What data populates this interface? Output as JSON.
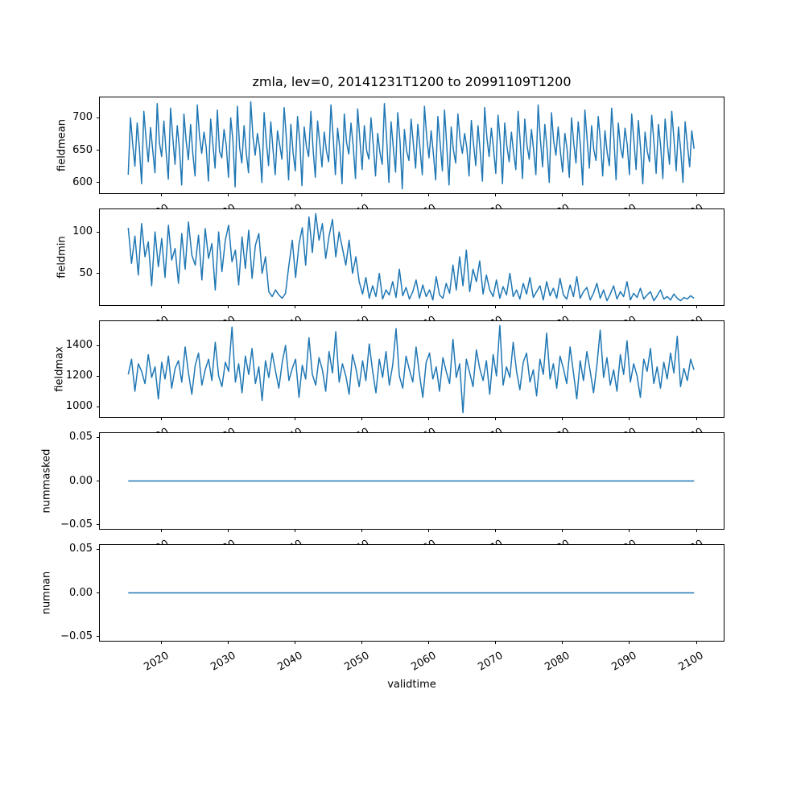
{
  "chart_data": {
    "type": "line",
    "title": "zmla, lev=0, 20141231T1200 to 20991109T1200",
    "xlabel": "validtime",
    "line_color": "#1f77b4",
    "x_axis": {
      "xlim": [
        2010.75,
        2104.1
      ],
      "ticks": [
        2020,
        2030,
        2040,
        2050,
        2060,
        2070,
        2080,
        2090,
        2100
      ],
      "tick_labels": [
        "2020",
        "2030",
        "2040",
        "2050",
        "2060",
        "2070",
        "2080",
        "2090",
        "2100"
      ]
    },
    "subplots": [
      {
        "ylabel": "fieldmean",
        "ylim": [
          583.25,
          731.75
        ],
        "yticks": [
          {
            "v": 600,
            "label": "600"
          },
          {
            "v": 650,
            "label": "650"
          },
          {
            "v": 700,
            "label": "700"
          }
        ],
        "x_start": 2015.0,
        "x_step": 0.33333,
        "values": [
          612,
          700,
          660,
          625,
          692,
          655,
          598,
          710,
          668,
          632,
          685,
          650,
          615,
          722,
          662,
          640,
          695,
          648,
          605,
          715,
          670,
          628,
          688,
          652,
          596,
          706,
          665,
          635,
          690,
          645,
          610,
          720,
          672,
          645,
          678,
          655,
          602,
          698,
          660,
          622,
          712,
          648,
          638,
          682,
          658,
          608,
          700,
          666,
          593,
          718,
          654,
          630,
          688,
          645,
          615,
          725,
          670,
          642,
          676,
          652,
          600,
          708,
          662,
          626,
          694,
          650,
          612,
          680,
          658,
          636,
          716,
          668,
          604,
          690,
          646,
          618,
          702,
          664,
          595,
          686,
          655,
          640,
          710,
          650,
          608,
          695,
          660,
          624,
          678,
          648,
          632,
          720,
          670,
          612,
          684,
          652,
          598,
          706,
          662,
          644,
          692,
          656,
          606,
          714,
          666,
          620,
          688,
          650,
          636,
          700,
          658,
          610,
          676,
          646,
          628,
          722,
          668,
          600,
          694,
          654,
          616,
          708,
          664,
          590,
          682,
          648,
          634,
          698,
          660,
          622,
          690,
          652,
          612,
          718,
          670,
          638,
          680,
          644,
          604,
          702,
          662,
          618,
          712,
          656,
          596,
          686,
          650,
          630,
          706,
          666,
          645,
          676,
          654,
          610,
          696,
          660,
          626,
          688,
          648,
          602,
          716,
          670,
          640,
          684,
          652,
          614,
          704,
          664,
          598,
          692,
          656,
          632,
          678,
          646,
          620,
          710,
          662,
          606,
          698,
          658,
          636,
          682,
          650,
          612,
          720,
          668,
          624,
          690,
          654,
          600,
          708,
          664,
          642,
          686,
          648,
          616,
          676,
          652,
          608,
          700,
          660,
          630,
          694,
          656,
          596,
          712,
          666,
          622,
          688,
          650,
          634,
          702,
          662,
          610,
          680,
          646,
          626,
          715,
          668,
          604,
          692,
          654,
          638,
          684,
          658,
          612,
          706,
          664,
          620,
          696,
          652,
          598,
          678,
          648,
          632,
          704,
          662,
          614,
          690,
          656,
          606,
          698,
          660,
          628,
          710,
          666,
          618,
          686,
          650,
          600,
          694,
          658,
          624,
          680,
          652
        ]
      },
      {
        "ylabel": "fieldmin",
        "ylim": [
          11.75,
          127.25
        ],
        "yticks": [
          {
            "v": 50,
            "label": "50"
          },
          {
            "v": 100,
            "label": "100"
          }
        ],
        "x_start": 2015.0,
        "x_step": 0.5009,
        "values": [
          105,
          62,
          95,
          48,
          110,
          70,
          88,
          35,
          100,
          58,
          92,
          45,
          108,
          66,
          80,
          38,
          98,
          55,
          112,
          72,
          60,
          96,
          42,
          104,
          68,
          86,
          30,
          100,
          52,
          90,
          108,
          64,
          78,
          36,
          94,
          56,
          102,
          44,
          84,
          98,
          50,
          70,
          28,
          22,
          30,
          24,
          20,
          26,
          60,
          90,
          45,
          85,
          105,
          60,
          118,
          75,
          122,
          90,
          110,
          68,
          95,
          115,
          70,
          100,
          80,
          60,
          90,
          50,
          70,
          40,
          25,
          45,
          20,
          35,
          22,
          50,
          19,
          30,
          24,
          40,
          21,
          55,
          23,
          33,
          19,
          28,
          42,
          20,
          36,
          22,
          30,
          18,
          46,
          24,
          20,
          38,
          26,
          60,
          30,
          70,
          35,
          78,
          28,
          55,
          40,
          65,
          25,
          48,
          30,
          22,
          42,
          20,
          34,
          24,
          50,
          22,
          30,
          19,
          38,
          25,
          45,
          21,
          28,
          35,
          18,
          40,
          23,
          32,
          20,
          44,
          24,
          19,
          36,
          22,
          46,
          20,
          28,
          33,
          18,
          26,
          38,
          20,
          30,
          17,
          25,
          35,
          19,
          28,
          22,
          40,
          18,
          26,
          21,
          32,
          19,
          24,
          28,
          17,
          23,
          30,
          19,
          22,
          18,
          25,
          20,
          17,
          21,
          19,
          23,
          20
        ]
      },
      {
        "ylabel": "fieldmax",
        "ylim": [
          931.5,
          1558.5
        ],
        "yticks": [
          {
            "v": 1000,
            "label": "1000"
          },
          {
            "v": 1200,
            "label": "1200"
          },
          {
            "v": 1400,
            "label": "1400"
          }
        ],
        "x_start": 2015.0,
        "x_step": 0.5009,
        "values": [
          1210,
          1310,
          1100,
          1280,
          1230,
          1150,
          1340,
          1190,
          1260,
          1050,
          1290,
          1180,
          1330,
          1120,
          1250,
          1300,
          1160,
          1390,
          1220,
          1080,
          1270,
          1350,
          1140,
          1240,
          1310,
          1170,
          1420,
          1200,
          1130,
          1290,
          1230,
          1520,
          1160,
          1280,
          1090,
          1330,
          1210,
          1380,
          1150,
          1260,
          1040,
          1300,
          1190,
          1350,
          1230,
          1120,
          1290,
          1400,
          1170,
          1250,
          1310,
          1060,
          1270,
          1180,
          1450,
          1210,
          1140,
          1320,
          1240,
          1100,
          1360,
          1220,
          1490,
          1160,
          1280,
          1200,
          1080,
          1340,
          1250,
          1130,
          1300,
          1170,
          1410,
          1230,
          1090,
          1310,
          1190,
          1360,
          1140,
          1270,
          1510,
          1200,
          1120,
          1330,
          1240,
          1160,
          1390,
          1210,
          1060,
          1290,
          1350,
          1180,
          1260,
          1100,
          1320,
          1230,
          1150,
          1440,
          1190,
          1280,
          960,
          1310,
          1220,
          1130,
          1370,
          1250,
          1170,
          1300,
          1080,
          1340,
          1200,
          1530,
          1140,
          1260,
          1190,
          1420,
          1230,
          1110,
          1290,
          1350,
          1160,
          1240,
          1070,
          1310,
          1210,
          1480,
          1180,
          1280,
          1120,
          1330,
          1250,
          1150,
          1390,
          1220,
          1050,
          1300,
          1170,
          1360,
          1230,
          1090,
          1270,
          1500,
          1190,
          1320,
          1140,
          1240,
          1100,
          1340,
          1210,
          1430,
          1160,
          1280,
          1200,
          1060,
          1310,
          1230,
          1380,
          1150,
          1260,
          1120,
          1290,
          1180,
          1350,
          1220,
          1460,
          1130,
          1250,
          1170,
          1310,
          1240
        ]
      },
      {
        "ylabel": "nummasked",
        "ylim": [
          -0.055,
          0.055
        ],
        "yticks": [
          {
            "v": -0.05,
            "label": "−0.05"
          },
          {
            "v": 0,
            "label": "0.00"
          },
          {
            "v": 0.05,
            "label": "0.05"
          }
        ],
        "x_start": 2015.0,
        "x_step": 84.67,
        "values": [
          0,
          0
        ]
      },
      {
        "ylabel": "numnan",
        "ylim": [
          -0.055,
          0.055
        ],
        "yticks": [
          {
            "v": -0.05,
            "label": "−0.05"
          },
          {
            "v": 0,
            "label": "0.00"
          },
          {
            "v": 0.05,
            "label": "0.05"
          }
        ],
        "x_start": 2015.0,
        "x_step": 84.67,
        "values": [
          0,
          0
        ]
      }
    ]
  }
}
